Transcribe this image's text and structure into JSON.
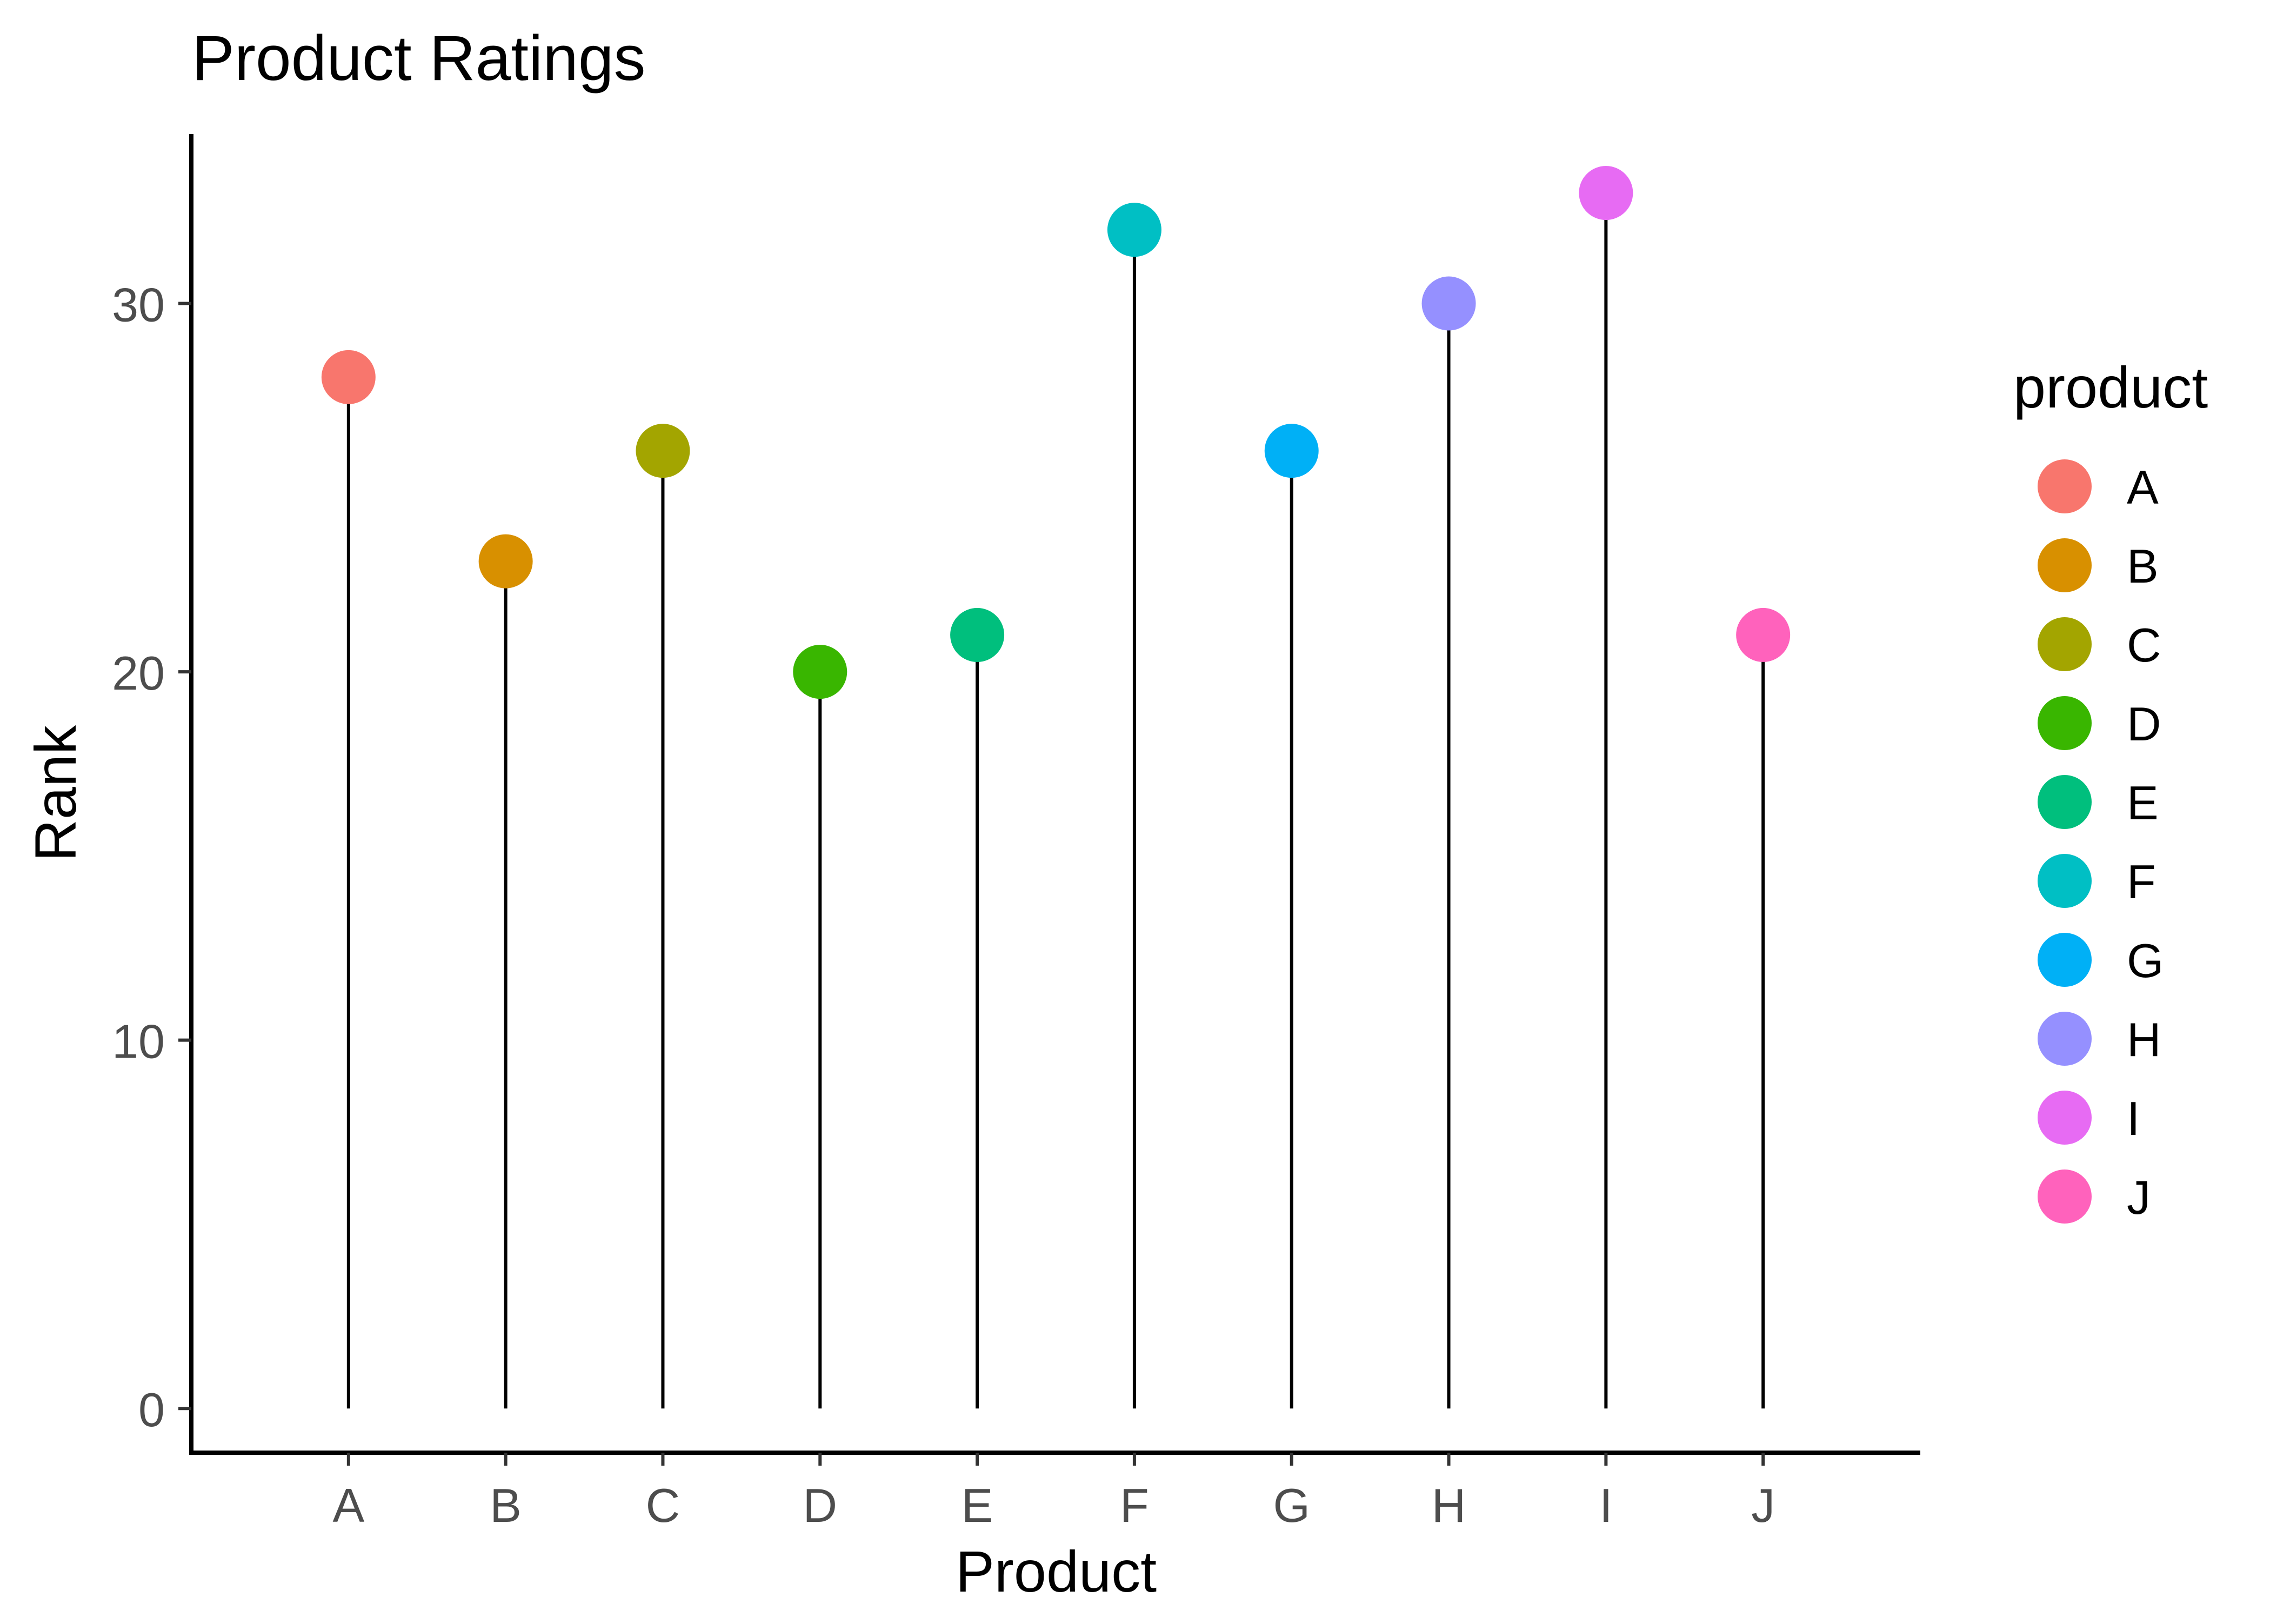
{
  "chart_data": {
    "type": "lollipop",
    "title": "Product Ratings",
    "xlabel": "Product",
    "ylabel": "Rank",
    "categories": [
      "A",
      "B",
      "C",
      "D",
      "E",
      "F",
      "G",
      "H",
      "I",
      "J"
    ],
    "values": [
      28,
      23,
      26,
      20,
      21,
      32,
      26,
      30,
      33,
      21
    ],
    "colors": [
      "#F8766D",
      "#D89000",
      "#A3A500",
      "#39B600",
      "#00BF7D",
      "#00BFC4",
      "#00B0F6",
      "#9590FF",
      "#E76BF3",
      "#FF62BC"
    ],
    "ylim": [
      -1.2,
      34.6
    ],
    "yticks": [
      0,
      10,
      20,
      30
    ],
    "grid": false,
    "legend": {
      "title": "product",
      "placement": "right",
      "entries": [
        "A",
        "B",
        "C",
        "D",
        "E",
        "F",
        "G",
        "H",
        "I",
        "J"
      ]
    }
  }
}
